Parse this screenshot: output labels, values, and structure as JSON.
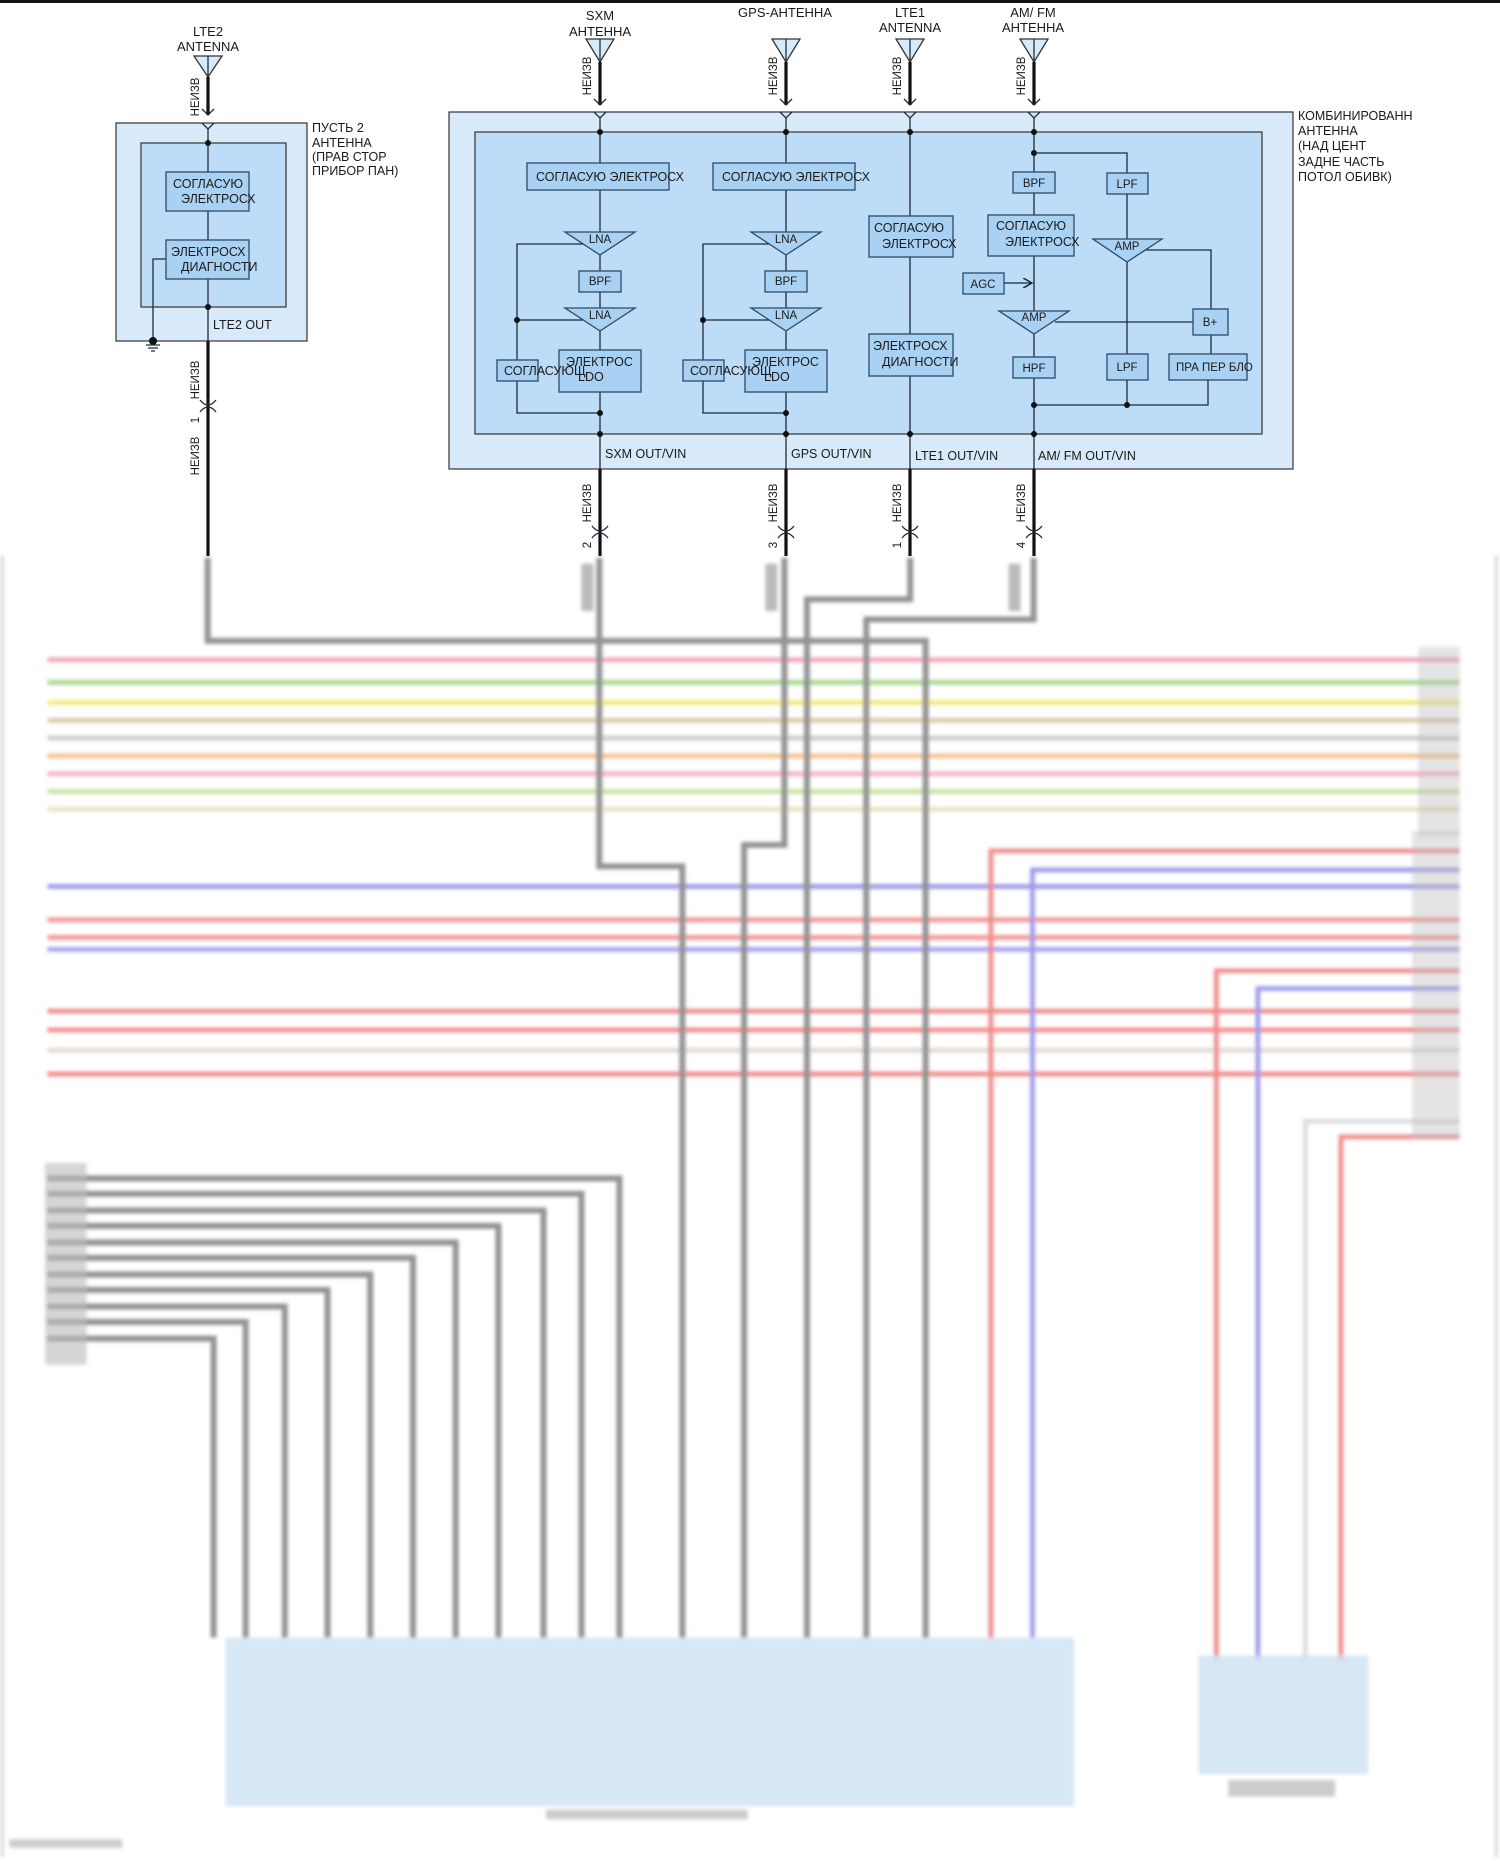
{
  "wire_label": "НЕИЗВ",
  "antennas": {
    "lte2": [
      "LTE2",
      "ANTENNA"
    ],
    "sxm": [
      "SXM",
      "АНТЕННА"
    ],
    "gps": "GPS-АНТЕННА",
    "lte1": [
      "LTE1",
      "ANTENNA"
    ],
    "amfm": [
      "AM/ FM",
      "АНТЕННА"
    ]
  },
  "lte2_module": {
    "name": [
      "ПУСТЬ 2",
      "АНТЕННА",
      "(ПРАВ СТОР",
      "ПРИБОР ПАН)"
    ],
    "matching": [
      "СОГЛАСУЮ",
      "ЭЛЕКТРОСХ"
    ],
    "diag": [
      "ЭЛЕКТРОСХ",
      "ДИАГНОСТИ"
    ],
    "output": "LTE2 OUT",
    "pin": "1"
  },
  "combo_module": {
    "name": [
      "КОМБИНИРОВАНН",
      "АНТЕННА",
      "(НАД ЦЕНТ",
      "ЗАДНЕ ЧАСТЬ",
      "ПОТОЛ ОБИВК)"
    ],
    "sxm": {
      "matching": "СОГЛАСУЮ ЭЛЕКТРОСХ",
      "lna1": "LNA",
      "bpf": "BPF",
      "lna2": "LNA",
      "ldo": [
        "ЭЛЕКТРОС",
        "LDO"
      ],
      "match_small": "СОГЛАСУЮЩ",
      "output": "SXM OUT/VIN",
      "pin": "2"
    },
    "gps": {
      "matching": "СОГЛАСУЮ ЭЛЕКТРОСХ",
      "lna1": "LNA",
      "bpf": "BPF",
      "lna2": "LNA",
      "ldo": [
        "ЭЛЕКТРОС",
        "LDO"
      ],
      "match_small": "СОГЛАСУЮЩ",
      "output": "GPS OUT/VIN",
      "pin": "3"
    },
    "lte1": {
      "matching": [
        "СОГЛАСУЮ",
        "ЭЛЕКТРОСХ"
      ],
      "diag": [
        "ЭЛЕКТРОСХ",
        "ДИАГНОСТИ"
      ],
      "output": "LTE1 OUT/VIN",
      "pin": "1"
    },
    "amfm": {
      "bpf": "BPF",
      "lpf1": "LPF",
      "matching": [
        "СОГЛАСУЮ",
        "ЭЛЕКТРОСХ"
      ],
      "amp1": "AMP",
      "agc": "AGC",
      "amp2": "AMP",
      "bplus": "B+",
      "hpf": "HPF",
      "lpf2": "LPF",
      "power": "ПРА ПЕР БЛО",
      "output": "AM/ FM OUT/VIN",
      "pin": "4"
    }
  },
  "colors": {
    "module_outer": "#d8eafa",
    "module_inner": "#bcdcf8",
    "block": "#a9d1f3",
    "coax_wire": "#909090"
  }
}
